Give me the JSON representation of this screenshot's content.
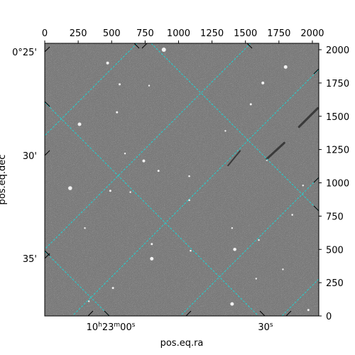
{
  "figure": {
    "xlabel": "pos.eq.ra",
    "ylabel": "pos.eq.dec"
  },
  "pixel_axes": {
    "top_ticks": [
      "0",
      "250",
      "500",
      "750",
      "1000",
      "1250",
      "1500",
      "1750",
      "2000"
    ],
    "top_tick_values": [
      0,
      250,
      500,
      750,
      1000,
      1250,
      1500,
      1750,
      2000
    ],
    "top_range": [
      0,
      2048
    ],
    "right_ticks": [
      "0",
      "250",
      "500",
      "750",
      "1000",
      "1250",
      "1500",
      "1750",
      "2000"
    ],
    "right_tick_values": [
      0,
      250,
      500,
      750,
      1000,
      1250,
      1500,
      1750,
      2000
    ],
    "right_range": [
      0,
      2048
    ]
  },
  "world_axes": {
    "dec_ticks": [
      "0°25'",
      "30'",
      "35'"
    ],
    "dec_tick_values_arcmin": [
      25,
      30,
      35
    ],
    "ra_ticks": [
      {
        "label_main": "10",
        "sup_h": "h",
        "label_mid": "23",
        "sup_m": "m",
        "label_end": "00",
        "sup_s": "s",
        "value_s": 0
      },
      {
        "label_main": "30",
        "sup_s": "s",
        "value_s": 30
      }
    ]
  },
  "image": {
    "colormap": "gray",
    "background_color": "#7b7b7b",
    "grid_color": "#1fd3d3"
  },
  "stars": [
    [
      890,
      2000,
      3
    ],
    [
      470,
      1900,
      2
    ],
    [
      1800,
      1870,
      2.5
    ],
    [
      560,
      1740,
      1.5
    ],
    [
      1630,
      1750,
      2
    ],
    [
      780,
      1730,
      1.2
    ],
    [
      1540,
      1590,
      1.5
    ],
    [
      540,
      1530,
      1.5
    ],
    [
      260,
      1440,
      2.5
    ],
    [
      1350,
      1390,
      1.2
    ],
    [
      600,
      1220,
      1.2
    ],
    [
      740,
      1165,
      2
    ],
    [
      850,
      1090,
      1.5
    ],
    [
      1660,
      1170,
      1.2
    ],
    [
      190,
      960,
      2.8
    ],
    [
      490,
      940,
      1.5
    ],
    [
      1080,
      1050,
      1.3
    ],
    [
      640,
      930,
      1.2
    ],
    [
      1080,
      870,
      1.3
    ],
    [
      1850,
      760,
      1.3
    ],
    [
      1930,
      980,
      1.2
    ],
    [
      1400,
      660,
      1.2
    ],
    [
      1420,
      500,
      2.3
    ],
    [
      800,
      540,
      1.5
    ],
    [
      800,
      430,
      2.5
    ],
    [
      1090,
      490,
      1.3
    ],
    [
      1600,
      570,
      1.2
    ],
    [
      1580,
      280,
      1.2
    ],
    [
      510,
      210,
      1.5
    ],
    [
      1400,
      90,
      2.5
    ],
    [
      1970,
      45,
      1.5
    ],
    [
      1780,
      350,
      1.2
    ],
    [
      330,
      110,
      1.2
    ],
    [
      300,
      660,
      1.2
    ]
  ],
  "trails": [
    [
      1900,
      1420,
      2040,
      1560,
      3
    ],
    [
      1660,
      1180,
      1790,
      1300,
      3
    ],
    [
      1370,
      1130,
      1460,
      1240,
      2
    ]
  ]
}
